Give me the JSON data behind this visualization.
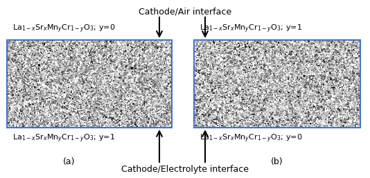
{
  "fig_width": 5.34,
  "fig_height": 2.58,
  "dpi": 100,
  "background_color": "#ffffff",
  "box_edge_color": "#4472c4",
  "box_fill_color": "#d0d0d0",
  "title_top": "Cathode/Air interface",
  "title_bottom": "Cathode/Electrolyte interface",
  "label_a": "(a)",
  "label_b": "(b)",
  "top_label_left": "La$_{1-x}$Sr$_x$Mn$_y$Cr$_{1-y}$O$_3$; y=0",
  "top_label_right": "La$_{1-x}$Sr$_x$Mn$_y$Cr$_{1-y}$O$_3$; y=1",
  "bottom_label_left": "La$_{1-x}$Sr$_x$Mn$_y$Cr$_{1-y}$O$_3$; y=1",
  "bottom_label_right": "La$_{1-x}$Sr$_x$Mn$_y$Cr$_{1-y}$O$_3$; y=0",
  "fontsize_title": 9,
  "fontsize_label": 8,
  "fontsize_sublabel": 9,
  "noise_n": 18000,
  "noise_size_min": 0.3,
  "noise_size_max": 3.5
}
